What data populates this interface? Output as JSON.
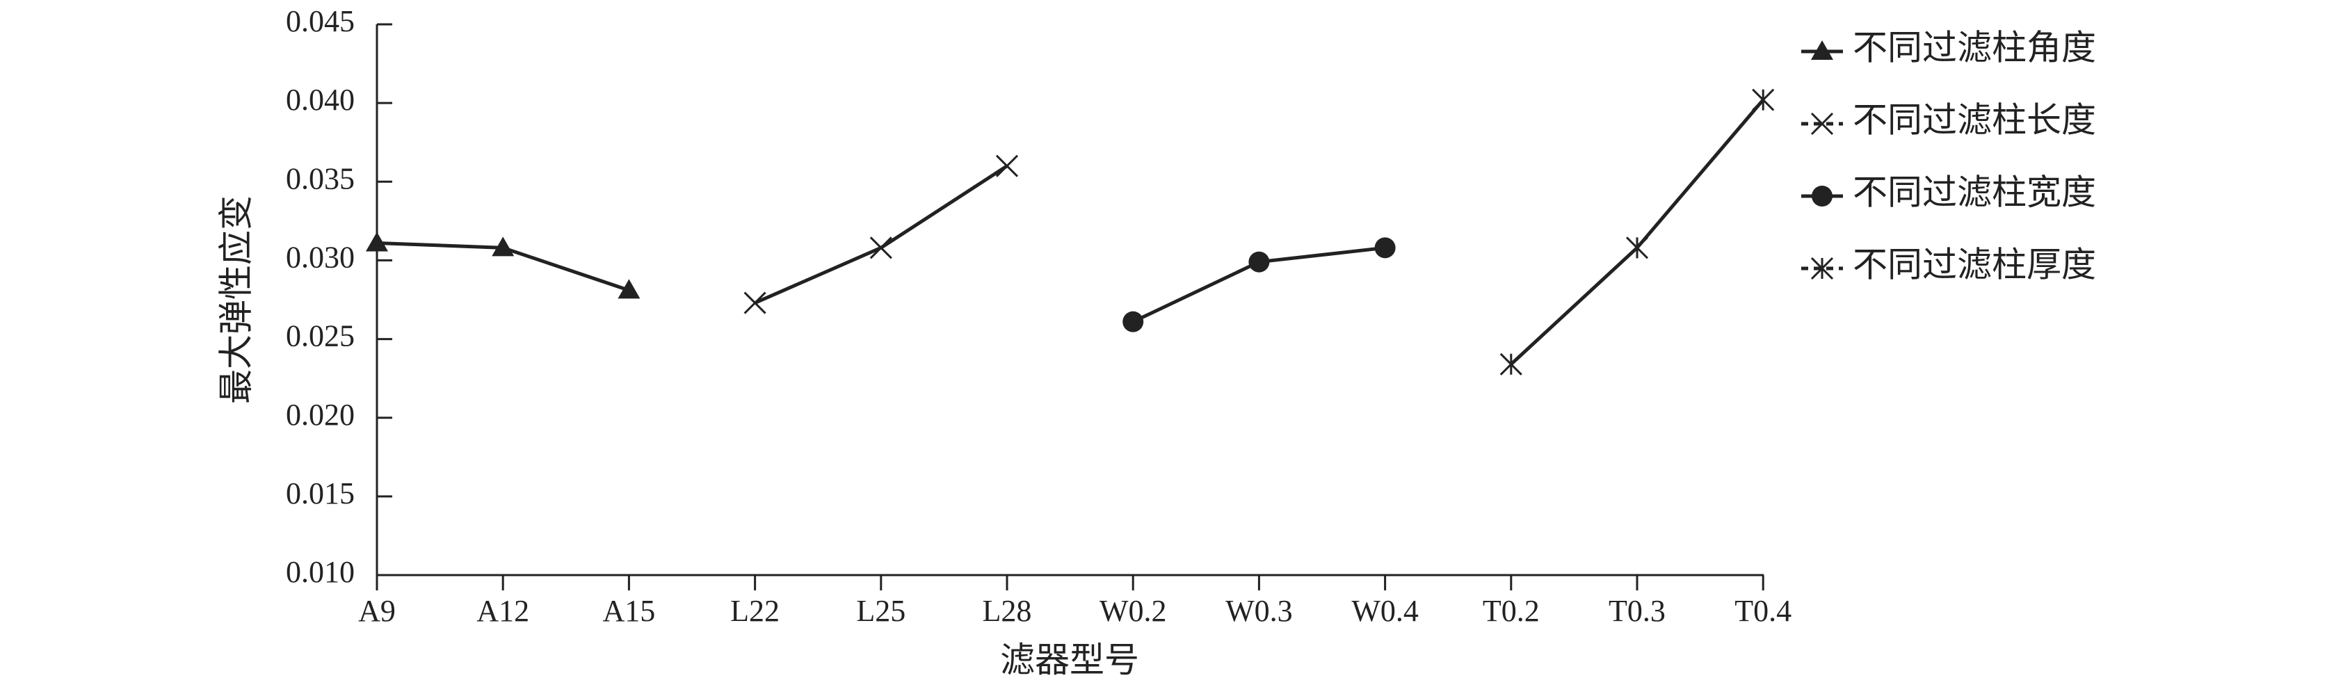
{
  "chart_data": {
    "type": "line",
    "xlabel": "滤器型号",
    "ylabel": "最大弹性应变",
    "categories": [
      "A9",
      "A12",
      "A15",
      "L22",
      "L25",
      "L28",
      "W0.2",
      "W0.3",
      "W0.4",
      "T0.2",
      "T0.3",
      "T0.4"
    ],
    "ylim": [
      0.01,
      0.045
    ],
    "yticks": [
      "0.010",
      "0.015",
      "0.020",
      "0.025",
      "0.030",
      "0.035",
      "0.040",
      "0.045"
    ],
    "grid": false,
    "legend_position": "right",
    "series": [
      {
        "name": "不同过滤柱角度",
        "marker": "triangle",
        "color": "#222222",
        "x": [
          "A9",
          "A12",
          "A15"
        ],
        "values": [
          0.0311,
          0.0308,
          0.0281
        ]
      },
      {
        "name": "不同过滤柱长度",
        "marker": "x",
        "color": "#222222",
        "x": [
          "L22",
          "L25",
          "L28"
        ],
        "values": [
          0.0273,
          0.0308,
          0.036
        ]
      },
      {
        "name": "不同过滤柱宽度",
        "marker": "circle",
        "color": "#222222",
        "x": [
          "W0.2",
          "W0.3",
          "W0.4"
        ],
        "values": [
          0.0261,
          0.0299,
          0.0308
        ]
      },
      {
        "name": "不同过滤柱厚度",
        "marker": "asterisk",
        "color": "#222222",
        "x": [
          "T0.2",
          "T0.3",
          "T0.4"
        ],
        "values": [
          0.0234,
          0.0308,
          0.0402
        ]
      }
    ]
  }
}
